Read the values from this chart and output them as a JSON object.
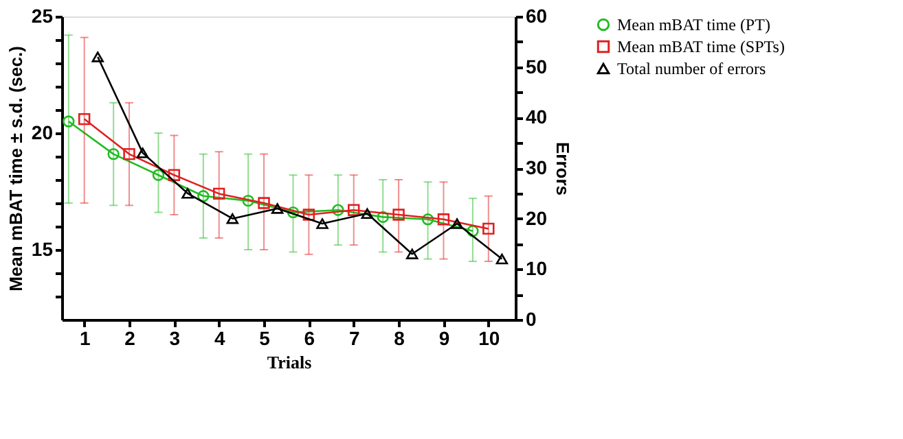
{
  "chart_data": {
    "type": "line",
    "xlabel": "Trials",
    "ylabel": "Mean mBAT time ± s.d. (sec.)",
    "y2label": "Errors",
    "xlim": [
      0.5,
      10.6
    ],
    "xticks": [
      1,
      2,
      3,
      4,
      5,
      6,
      7,
      8,
      9,
      10
    ],
    "ylim": [
      12,
      25
    ],
    "yticks": [
      {
        "value": 13,
        "label": null
      },
      {
        "value": 14,
        "label": null
      },
      15,
      {
        "value": 16,
        "label": null
      },
      {
        "value": 17,
        "label": null
      },
      {
        "value": 18,
        "label": null
      },
      {
        "value": 19,
        "label": null
      },
      20,
      {
        "value": 21,
        "label": null
      },
      {
        "value": 22,
        "label": null
      },
      {
        "value": 23,
        "label": null
      },
      {
        "value": 24,
        "label": null
      },
      25
    ],
    "y2lim": [
      0,
      60
    ],
    "y2ticks": [
      0,
      {
        "value": 5,
        "label": null
      },
      10,
      {
        "value": 15,
        "label": null
      },
      20,
      {
        "value": 25,
        "label": null
      },
      30,
      {
        "value": 35,
        "label": null
      },
      40,
      {
        "value": 45,
        "label": null
      },
      50,
      {
        "value": 55,
        "label": null
      },
      60
    ],
    "grid": false,
    "legend": "right",
    "line_style": "solid",
    "series": [
      {
        "name": "Mean mBAT time (PT)",
        "color": "#22bb22",
        "marker": "circle",
        "x": [
          0.65,
          1.65,
          2.65,
          3.65,
          4.65,
          5.65,
          6.65,
          7.65,
          8.65,
          9.65
        ],
        "values": [
          20.5,
          19.1,
          18.2,
          17.3,
          17.1,
          16.6,
          16.7,
          16.4,
          16.3,
          15.8
        ],
        "errors": [
          [
            17.0,
            24.2
          ],
          [
            16.9,
            21.3
          ],
          [
            16.6,
            20.0
          ],
          [
            15.5,
            19.1
          ],
          [
            15.0,
            19.1
          ],
          [
            14.9,
            18.2
          ],
          [
            15.2,
            18.2
          ],
          [
            14.9,
            18.0
          ],
          [
            14.6,
            17.9
          ],
          [
            14.5,
            17.2
          ]
        ]
      },
      {
        "name": "Mean mBAT time (SPTs)",
        "color": "#e02020",
        "marker": "square",
        "x": [
          1,
          2,
          3,
          4,
          5,
          6,
          7,
          8,
          9,
          10
        ],
        "values": [
          20.6,
          19.1,
          18.2,
          17.4,
          17.0,
          16.5,
          16.7,
          16.5,
          16.3,
          15.9
        ],
        "errors": [
          [
            17.0,
            24.1
          ],
          [
            16.9,
            21.3
          ],
          [
            16.5,
            19.9
          ],
          [
            15.5,
            19.2
          ],
          [
            15.0,
            19.1
          ],
          [
            14.8,
            18.2
          ],
          [
            15.2,
            18.2
          ],
          [
            14.9,
            18.0
          ],
          [
            14.6,
            17.9
          ],
          [
            14.5,
            17.3
          ]
        ]
      },
      {
        "name": "Total number of errors",
        "color": "#000000",
        "marker": "triangle",
        "axis": "y2",
        "x": [
          1.3,
          2.3,
          3.3,
          4.3,
          5.3,
          6.3,
          7.3,
          8.3,
          9.3,
          10.3
        ],
        "values": [
          52,
          33,
          25,
          20,
          22,
          19,
          21,
          13,
          19,
          12
        ]
      }
    ]
  }
}
